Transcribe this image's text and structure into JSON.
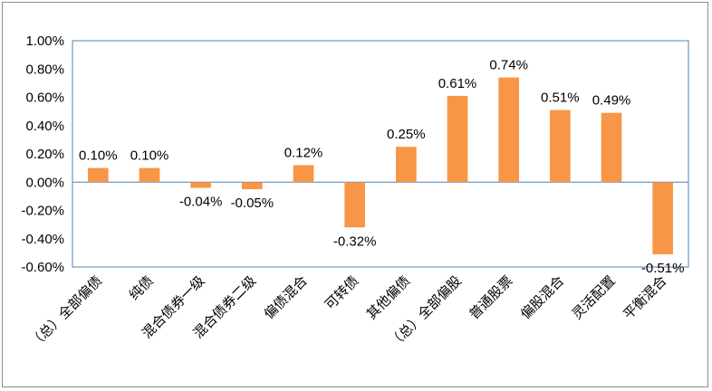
{
  "chart_data": {
    "type": "bar",
    "title": "",
    "xlabel": "",
    "ylabel": "",
    "categories": [
      "（总）全部偏债",
      "纯债",
      "混合债券一级",
      "混合债券二级",
      "偏债混合",
      "可转债",
      "其他偏债",
      "（总）全部偏股",
      "普通股票",
      "偏股混合",
      "灵活配置",
      "平衡混合"
    ],
    "values": [
      0.1,
      0.1,
      -0.04,
      -0.05,
      0.12,
      -0.32,
      0.25,
      0.61,
      0.74,
      0.51,
      0.49,
      -0.51
    ],
    "data_labels": [
      "0.10%",
      "0.10%",
      "-0.04%",
      "-0.05%",
      "0.12%",
      "-0.32%",
      "0.25%",
      "0.61%",
      "0.74%",
      "0.51%",
      "0.49%",
      "-0.51%"
    ],
    "yticks": [
      "1.00%",
      "0.80%",
      "0.60%",
      "0.40%",
      "0.20%",
      "0.00%",
      "-0.20%",
      "-0.40%",
      "-0.60%"
    ],
    "ylim": [
      -0.6,
      1.0
    ],
    "unit": "%",
    "grid": false,
    "legend": "none",
    "colors": {
      "bar": "#F79646",
      "plot_border": "#4F81BD",
      "frame_border": "#8C8C8C"
    }
  }
}
